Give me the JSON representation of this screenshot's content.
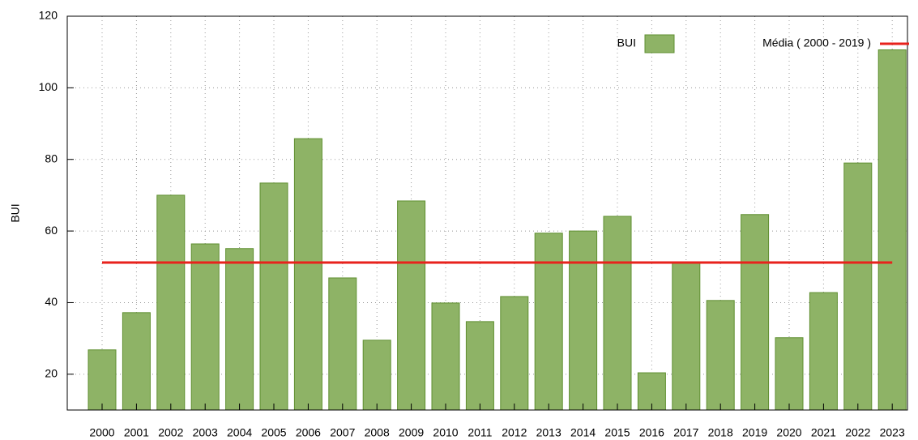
{
  "chart_data": {
    "type": "bar",
    "y_label": "BUI",
    "categories": [
      "2000",
      "2001",
      "2002",
      "2003",
      "2004",
      "2005",
      "2006",
      "2007",
      "2008",
      "2009",
      "2010",
      "2011",
      "2012",
      "2013",
      "2014",
      "2015",
      "2016",
      "2017",
      "2018",
      "2019",
      "2020",
      "2021",
      "2022",
      "2023"
    ],
    "series": [
      {
        "name": "BUI",
        "color": "#8eb366",
        "values": [
          26.8,
          37.2,
          70,
          56.4,
          55.1,
          73.4,
          85.8,
          46.9,
          29.5,
          68.4,
          39.9,
          34.7,
          41.7,
          59.4,
          60,
          64.1,
          20.4,
          51.2,
          40.6,
          64.6,
          30.2,
          42.8,
          79,
          110.6
        ]
      }
    ],
    "mean": {
      "name": "Média ( 2000 - 2019 )",
      "color": "#e8221c",
      "value": 51.2
    },
    "ylim": [
      10,
      120
    ],
    "yticks": [
      20,
      40,
      60,
      80,
      100,
      120
    ],
    "grid": true
  }
}
